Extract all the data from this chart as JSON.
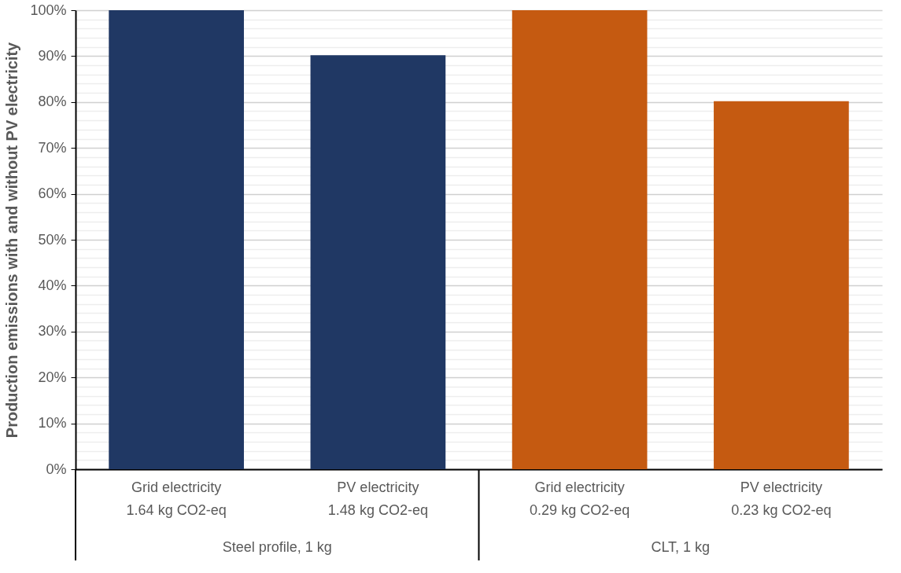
{
  "chart_data": {
    "type": "bar",
    "ylabel": "Production emissions with and without PV electricity",
    "categories": [
      "Grid electricity\n1.64 kg CO2-eq",
      "PV electricity\n1.48 kg CO2-eq",
      "Grid electricity\n0.29 kg CO2-eq",
      "PV electricity\n0.23 kg CO2-eq"
    ],
    "values": [
      100,
      90.2,
      100,
      80.2
    ],
    "colors": [
      "#203864",
      "#203864",
      "#c55a11",
      "#c55a11"
    ],
    "ylim": [
      0,
      100
    ],
    "yticks": [
      {
        "value": 0,
        "label": "0%"
      },
      {
        "value": 2,
        "label": null
      },
      {
        "value": 4,
        "label": null
      },
      {
        "value": 6,
        "label": null
      },
      {
        "value": 8,
        "label": null
      },
      {
        "value": 10,
        "label": "10%"
      },
      {
        "value": 12,
        "label": null
      },
      {
        "value": 14,
        "label": null
      },
      {
        "value": 16,
        "label": null
      },
      {
        "value": 18,
        "label": null
      },
      {
        "value": 20,
        "label": "20%"
      },
      {
        "value": 22,
        "label": null
      },
      {
        "value": 24,
        "label": null
      },
      {
        "value": 26,
        "label": null
      },
      {
        "value": 28,
        "label": null
      },
      {
        "value": 30,
        "label": "30%"
      },
      {
        "value": 32,
        "label": null
      },
      {
        "value": 34,
        "label": null
      },
      {
        "value": 36,
        "label": null
      },
      {
        "value": 38,
        "label": null
      },
      {
        "value": 40,
        "label": "40%"
      },
      {
        "value": 42,
        "label": null
      },
      {
        "value": 44,
        "label": null
      },
      {
        "value": 46,
        "label": null
      },
      {
        "value": 48,
        "label": null
      },
      {
        "value": 50,
        "label": "50%"
      },
      {
        "value": 52,
        "label": null
      },
      {
        "value": 54,
        "label": null
      },
      {
        "value": 56,
        "label": null
      },
      {
        "value": 58,
        "label": null
      },
      {
        "value": 60,
        "label": "60%"
      },
      {
        "value": 62,
        "label": null
      },
      {
        "value": 64,
        "label": null
      },
      {
        "value": 66,
        "label": null
      },
      {
        "value": 68,
        "label": null
      },
      {
        "value": 70,
        "label": "70%"
      },
      {
        "value": 72,
        "label": null
      },
      {
        "value": 74,
        "label": null
      },
      {
        "value": 76,
        "label": null
      },
      {
        "value": 78,
        "label": null
      },
      {
        "value": 80,
        "label": "80%"
      },
      {
        "value": 82,
        "label": null
      },
      {
        "value": 84,
        "label": null
      },
      {
        "value": 86,
        "label": null
      },
      {
        "value": 88,
        "label": null
      },
      {
        "value": 90,
        "label": "90%"
      },
      {
        "value": 92,
        "label": null
      },
      {
        "value": 94,
        "label": null
      },
      {
        "value": 96,
        "label": null
      },
      {
        "value": 98,
        "label": null
      },
      {
        "value": 100,
        "label": "100%"
      }
    ],
    "grid": true,
    "annotations": [
      "Steel profile, 1 kg",
      "CLT, 1 kg"
    ]
  }
}
